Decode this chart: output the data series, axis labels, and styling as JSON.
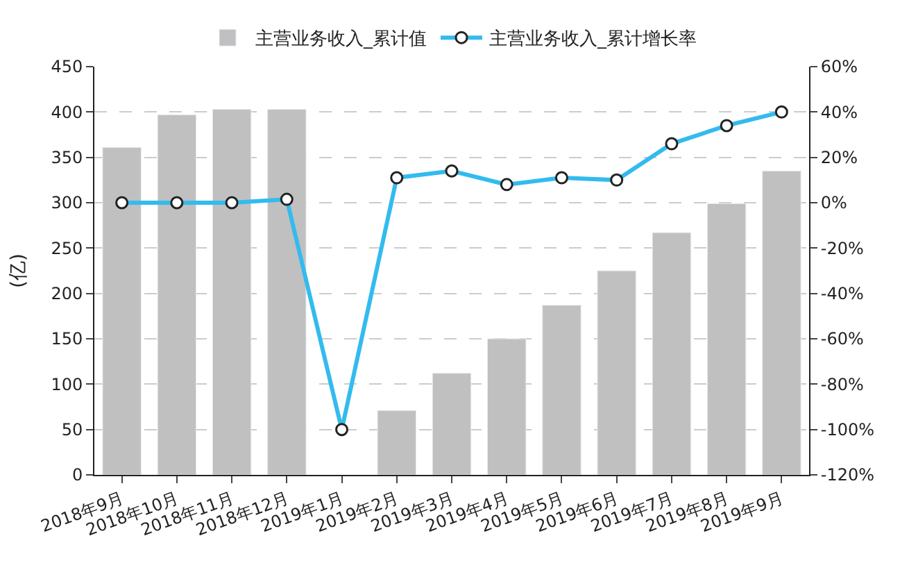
{
  "chart_data": {
    "type": "bar",
    "categories": [
      "2018年9月",
      "2018年10月",
      "2018年11月",
      "2018年12月",
      "2019年1月",
      "2019年2月",
      "2019年3月",
      "2019年4月",
      "2019年5月",
      "2019年6月",
      "2019年7月",
      "2019年8月",
      "2019年9月"
    ],
    "ylabel": "(亿)",
    "series": [
      {
        "name": "主营业务收入_累计值",
        "color": "#c0c0c0",
        "values": [
          361,
          397,
          403,
          403,
          null,
          71,
          112,
          150,
          187,
          225,
          267,
          299,
          335
        ]
      },
      {
        "name": "主营业务收入_累计增长率",
        "type": "line",
        "axis": "y2",
        "color": "#33bbee",
        "marker": "circle",
        "values": [
          0,
          0,
          0,
          1.5,
          -100,
          11,
          14,
          8,
          11,
          10,
          26,
          34,
          40
        ]
      }
    ],
    "ylim": [
      0,
      450
    ],
    "yticks": [
      0,
      50,
      100,
      150,
      200,
      250,
      300,
      350,
      400,
      450
    ],
    "y2lim": [
      -120,
      60
    ],
    "y2ticks": [
      {
        "value": -120,
        "label": "-120%"
      },
      {
        "value": -100,
        "label": "-100%"
      },
      {
        "value": -80,
        "label": "-80%"
      },
      {
        "value": -60,
        "label": "-60%"
      },
      {
        "value": -40,
        "label": "-40%"
      },
      {
        "value": -20,
        "label": "-20%"
      },
      {
        "value": 0,
        "label": "0%"
      },
      {
        "value": 20,
        "label": "20%"
      },
      {
        "value": 40,
        "label": "40%"
      },
      {
        "value": 60,
        "label": "60%"
      }
    ],
    "grid": "y",
    "legend": "top"
  }
}
